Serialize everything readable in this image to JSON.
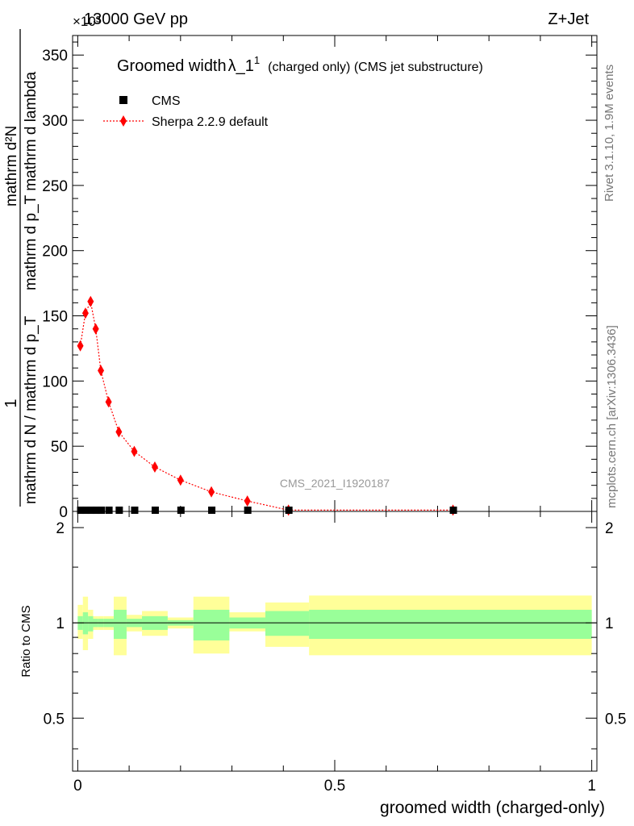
{
  "header": {
    "left": "13000 GeV pp",
    "right": "Z+Jet",
    "exponent": "×10³"
  },
  "side_labels": {
    "rivet": "Rivet 3.1.10,  1.9M events",
    "mcplots": "mcplots.cern.ch [arXiv:1306.3436]"
  },
  "watermark": "CMS_2021_I1920187",
  "legend": {
    "title_main": "Groomed width",
    "title_lambda": "λ_1",
    "title_sup": "1",
    "title_suffix": "(charged only) (CMS jet substructure)",
    "entries": [
      {
        "label": "CMS",
        "color": "#000000"
      },
      {
        "label": "Sherpa 2.2.9 default",
        "color": "#ff0000"
      }
    ]
  },
  "ylabel_main": {
    "numerator": "1",
    "denominator": "mathrm d N / mathrm d p_T",
    "right_num": "mathrm d²N",
    "right_den": "mathrm d p_T mathrm d lambda",
    "sub": "T"
  },
  "ylabel_ratio": "Ratio to CMS",
  "xlabel": "groomed width (charged-only)",
  "chart_data": [
    {
      "type": "scatter",
      "title": "Groomed width λ_1^1 (charged only) (CMS jet substructure)",
      "xlim": [
        -0.01,
        1.01
      ],
      "ylim": [
        0,
        365
      ],
      "y_multiplier": "×10³",
      "yticks": [
        0,
        50,
        100,
        150,
        200,
        250,
        300,
        350
      ],
      "series": [
        {
          "name": "CMS",
          "x": [
            0.005,
            0.015,
            0.025,
            0.035,
            0.045,
            0.06,
            0.08,
            0.11,
            0.15,
            0.2,
            0.26,
            0.33,
            0.41,
            0.73
          ],
          "y": [
            0.6,
            0.6,
            0.6,
            0.6,
            0.6,
            0.6,
            0.6,
            0.6,
            0.6,
            0.6,
            0.6,
            0.6,
            0.6,
            0.6
          ]
        },
        {
          "name": "Sherpa 2.2.9 default",
          "x": [
            0.005,
            0.015,
            0.025,
            0.035,
            0.045,
            0.06,
            0.08,
            0.11,
            0.15,
            0.2,
            0.26,
            0.33,
            0.41,
            0.73
          ],
          "y": [
            127,
            152,
            161,
            140,
            108,
            84,
            61,
            46,
            34,
            24,
            15,
            8,
            1,
            1
          ]
        }
      ]
    },
    {
      "type": "area",
      "ylabel": "Ratio to CMS",
      "xlabel": "groomed width (charged-only)",
      "xlim": [
        -0.01,
        1.01
      ],
      "ylim": [
        0.34,
        2.25
      ],
      "ylog": true,
      "yticks": [
        0.5,
        1,
        2
      ],
      "xticks": [
        0,
        0.5,
        1
      ],
      "bins": [
        {
          "lo": 0.0,
          "hi": 0.01,
          "inner": [
            0.95,
            1.05
          ],
          "outer": [
            0.89,
            1.14
          ]
        },
        {
          "lo": 0.01,
          "hi": 0.02,
          "inner": [
            0.92,
            1.08
          ],
          "outer": [
            0.82,
            1.21
          ]
        },
        {
          "lo": 0.02,
          "hi": 0.03,
          "inner": [
            0.94,
            1.05
          ],
          "outer": [
            0.89,
            1.1
          ]
        },
        {
          "lo": 0.03,
          "hi": 0.04,
          "inner": [
            0.97,
            1.03
          ],
          "outer": [
            0.95,
            1.05
          ]
        },
        {
          "lo": 0.04,
          "hi": 0.05,
          "inner": [
            0.97,
            1.03
          ],
          "outer": [
            0.95,
            1.05
          ]
        },
        {
          "lo": 0.05,
          "hi": 0.07,
          "inner": [
            0.97,
            1.03
          ],
          "outer": [
            0.95,
            1.05
          ]
        },
        {
          "lo": 0.07,
          "hi": 0.095,
          "inner": [
            0.89,
            1.1
          ],
          "outer": [
            0.79,
            1.21
          ]
        },
        {
          "lo": 0.095,
          "hi": 0.125,
          "inner": [
            0.97,
            1.03
          ],
          "outer": [
            0.94,
            1.06
          ]
        },
        {
          "lo": 0.125,
          "hi": 0.175,
          "inner": [
            0.95,
            1.05
          ],
          "outer": [
            0.91,
            1.09
          ]
        },
        {
          "lo": 0.175,
          "hi": 0.225,
          "inner": [
            0.98,
            1.02
          ],
          "outer": [
            0.96,
            1.04
          ]
        },
        {
          "lo": 0.225,
          "hi": 0.295,
          "inner": [
            0.88,
            1.1
          ],
          "outer": [
            0.8,
            1.21
          ]
        },
        {
          "lo": 0.295,
          "hi": 0.365,
          "inner": [
            0.96,
            1.04
          ],
          "outer": [
            0.94,
            1.08
          ]
        },
        {
          "lo": 0.365,
          "hi": 0.45,
          "inner": [
            0.91,
            1.09
          ],
          "outer": [
            0.84,
            1.16
          ]
        },
        {
          "lo": 0.45,
          "hi": 1.0,
          "inner": [
            0.89,
            1.1
          ],
          "outer": [
            0.79,
            1.22
          ]
        }
      ],
      "inner_color": "#99ff99",
      "outer_color": "#ffff99",
      "reference": 1
    }
  ]
}
